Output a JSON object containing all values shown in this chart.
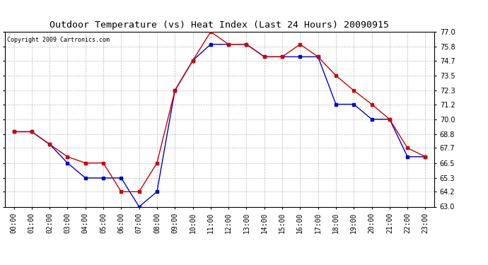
{
  "title": "Outdoor Temperature (vs) Heat Index (Last 24 Hours) 20090915",
  "copyright": "Copyright 2009 Cartronics.com",
  "hours": [
    "00:00",
    "01:00",
    "02:00",
    "03:00",
    "04:00",
    "05:00",
    "06:00",
    "07:00",
    "08:00",
    "09:00",
    "10:00",
    "11:00",
    "12:00",
    "13:00",
    "14:00",
    "15:00",
    "16:00",
    "17:00",
    "18:00",
    "19:00",
    "20:00",
    "21:00",
    "22:00",
    "23:00"
  ],
  "temp": [
    69.0,
    69.0,
    68.0,
    67.0,
    66.5,
    66.5,
    64.2,
    64.2,
    66.5,
    72.3,
    74.7,
    77.0,
    76.0,
    76.0,
    75.0,
    75.0,
    76.0,
    75.0,
    73.5,
    72.3,
    71.2,
    70.0,
    67.7,
    67.0
  ],
  "heat_index": [
    69.0,
    69.0,
    68.0,
    66.5,
    65.3,
    65.3,
    65.3,
    63.0,
    64.2,
    72.3,
    74.7,
    76.0,
    76.0,
    76.0,
    75.0,
    75.0,
    75.0,
    75.0,
    71.2,
    71.2,
    70.0,
    70.0,
    67.0,
    67.0
  ],
  "ylim": [
    63.0,
    77.0
  ],
  "yticks": [
    63.0,
    64.2,
    65.3,
    66.5,
    67.7,
    68.8,
    70.0,
    71.2,
    72.3,
    73.5,
    74.7,
    75.8,
    77.0
  ],
  "temp_color": "#cc0000",
  "heat_index_color": "#0000cc",
  "bg_color": "#ffffff",
  "grid_color": "#bbbbbb",
  "title_fontsize": 9.5,
  "tick_fontsize": 7,
  "copyright_fontsize": 6,
  "marker": "s",
  "marker_size": 2.5,
  "linewidth": 1.0
}
